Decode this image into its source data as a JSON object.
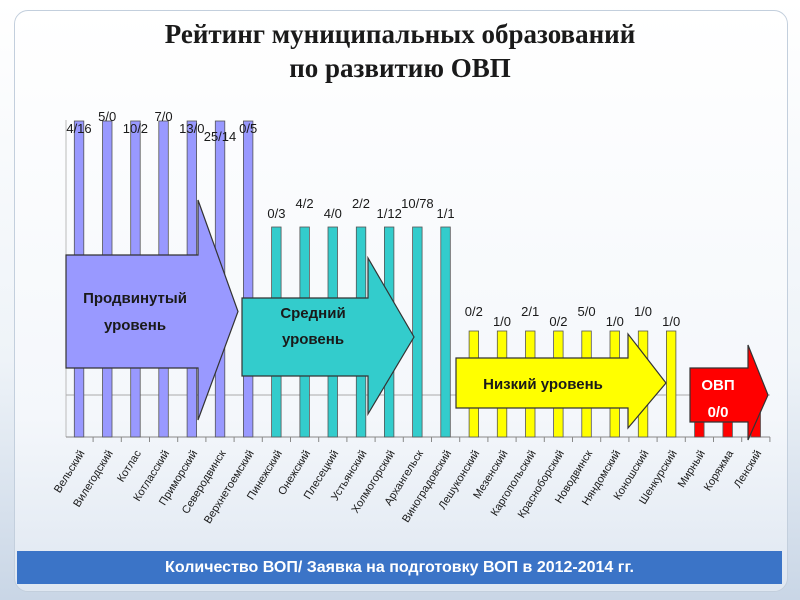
{
  "title_line1": "Рейтинг муниципальных образований",
  "title_line2": "по развитию ОВП",
  "footer": "Количество ВОП/ Заявка на подготовку ВОП в 2012-2014 гг.",
  "colors": {
    "advanced": "#9999ff",
    "medium": "#33cccc",
    "low": "#ffff00",
    "ovp": "#ff0000",
    "footer": "#3b74c7"
  },
  "chart_data": {
    "type": "bar",
    "title": "",
    "xlabel": "",
    "ylabel": "",
    "categories": [
      "Вельский",
      "Вилегодский",
      "Котлас",
      "Котласский",
      "Приморский",
      "Северодвинск",
      "Верхнетоемский",
      "Пинежский",
      "Онежский",
      "Плесецкий",
      "Устьянский",
      "Холмогорский",
      "Архангельск",
      "Виноградовский",
      "Лешуконский",
      "Мезенский",
      "Каргопольский",
      "Красноборский",
      "Новодвинск",
      "Няндомский",
      "Коношский",
      "Шенкурский",
      "Мирный",
      "Коряжма",
      "Ленский"
    ],
    "values": [
      4,
      4,
      4,
      4,
      4,
      4,
      4,
      3,
      3,
      3,
      3,
      3,
      3,
      3,
      2,
      2,
      2,
      2,
      2,
      2,
      2,
      2,
      1,
      1,
      1
    ],
    "data_labels": [
      "4/16",
      "5/0",
      "10/2",
      "7/0",
      "13/0",
      "25/14",
      "0/5",
      "0/3",
      "4/2",
      "4/0",
      "2/2",
      "1/12",
      "10/78",
      "1/1",
      "0/2",
      "1/0",
      "2/1",
      "0/2",
      "5/0",
      "1/0",
      "1/0",
      "1/0",
      "",
      "",
      ""
    ],
    "groups": [
      {
        "label_line1": "Продвинутый",
        "label_line2": "уровень",
        "color": "#9999ff"
      },
      {
        "label_line1": "Средний",
        "label_line2": "уровень",
        "color": "#33cccc"
      },
      {
        "label_line1": "Низкий уровень",
        "label_line2": "",
        "color": "#ffff00"
      },
      {
        "label_line1": "ОВП",
        "label_line2": "0/0",
        "color": "#ff0000"
      }
    ],
    "grid": true,
    "legend": "none"
  }
}
